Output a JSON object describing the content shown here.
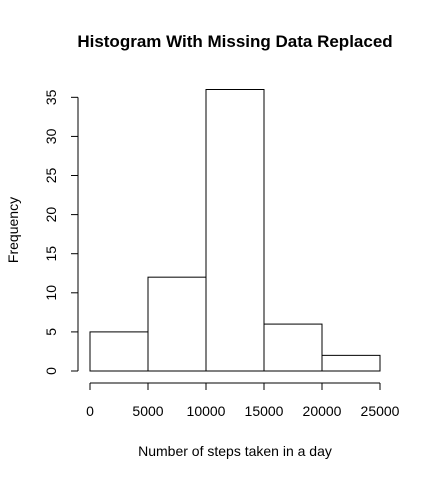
{
  "chart_data": {
    "type": "bar",
    "subtype": "histogram",
    "title": "Histogram With Missing Data Replaced",
    "xlabel": "Number of steps taken in a day",
    "ylabel": "Frequency",
    "bins": [
      {
        "from": 0,
        "to": 5000,
        "count": 5
      },
      {
        "from": 5000,
        "to": 10000,
        "count": 12
      },
      {
        "from": 10000,
        "to": 15000,
        "count": 36
      },
      {
        "from": 15000,
        "to": 20000,
        "count": 6
      },
      {
        "from": 20000,
        "to": 25000,
        "count": 2
      }
    ],
    "x_ticks": [
      0,
      5000,
      10000,
      15000,
      20000,
      25000
    ],
    "y_ticks": [
      0,
      5,
      10,
      15,
      20,
      25,
      30,
      35
    ],
    "xlim": [
      0,
      25000
    ],
    "ylim": [
      0,
      36
    ],
    "grid": false,
    "legend": "none",
    "bar_fill": "#ffffff",
    "bar_stroke": "#000000"
  }
}
